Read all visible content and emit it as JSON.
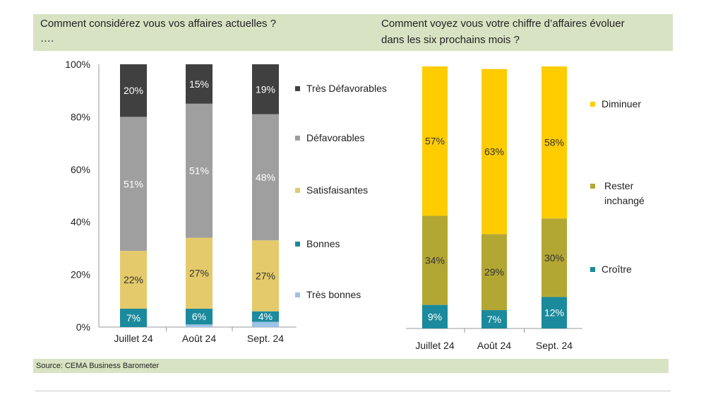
{
  "header": {
    "left_question": "Comment considérez vous vos affaires actuelles ?",
    "left_ellipsis": "….",
    "right_question_line1": "Comment voyez vous votre chiffre d’affaires évoluer",
    "right_question_line2": "dans les six prochains mois ?"
  },
  "source": "Source: CEMA Business Barometer",
  "chart_data": [
    {
      "type": "bar",
      "stacked": true,
      "percent": true,
      "categories": [
        "Juillet 24",
        "Août 24",
        "Sept. 24"
      ],
      "yticks": [
        "0%",
        "20%",
        "40%",
        "60%",
        "80%",
        "100%"
      ],
      "ylim": [
        0,
        100
      ],
      "legend_position": "right",
      "series": [
        {
          "name": "Très bonnes",
          "color": "#9dc3e6",
          "values": [
            0,
            1,
            2
          ],
          "labels": [
            "",
            "",
            ""
          ]
        },
        {
          "name": "Bonnes",
          "color": "#1b8a9c",
          "values": [
            7,
            6,
            4
          ],
          "labels": [
            "7%",
            "6%",
            "4%"
          ]
        },
        {
          "name": "Satisfaisantes",
          "color": "#e4ca6a",
          "values": [
            22,
            27,
            27
          ],
          "labels": [
            "22%",
            "27%",
            "27%"
          ]
        },
        {
          "name": "Défavorables",
          "color": "#9f9f9f",
          "values": [
            51,
            51,
            48
          ],
          "labels": [
            "51%",
            "51%",
            "48%"
          ]
        },
        {
          "name": "Très Défavorables",
          "color": "#404040",
          "values": [
            20,
            15,
            19
          ],
          "labels": [
            "20%",
            "15%",
            "19%"
          ]
        }
      ]
    },
    {
      "type": "bar",
      "stacked": true,
      "percent": true,
      "categories": [
        "Juillet 24",
        "Août 24",
        "Sept. 24"
      ],
      "ylim": [
        0,
        100
      ],
      "legend_position": "right",
      "series": [
        {
          "name": "Croître",
          "color": "#1b8a9c",
          "values": [
            9,
            7,
            12
          ],
          "labels": [
            "9%",
            "7%",
            "12%"
          ]
        },
        {
          "name": "Rester inchangé",
          "color": "#b3a734",
          "values": [
            34,
            29,
            30
          ],
          "labels": [
            "34%",
            "29%",
            "30%"
          ]
        },
        {
          "name": "Diminuer",
          "color": "#ffcc00",
          "values": [
            57,
            63,
            58
          ],
          "labels": [
            "57%",
            "63%",
            "58%"
          ]
        }
      ]
    }
  ]
}
